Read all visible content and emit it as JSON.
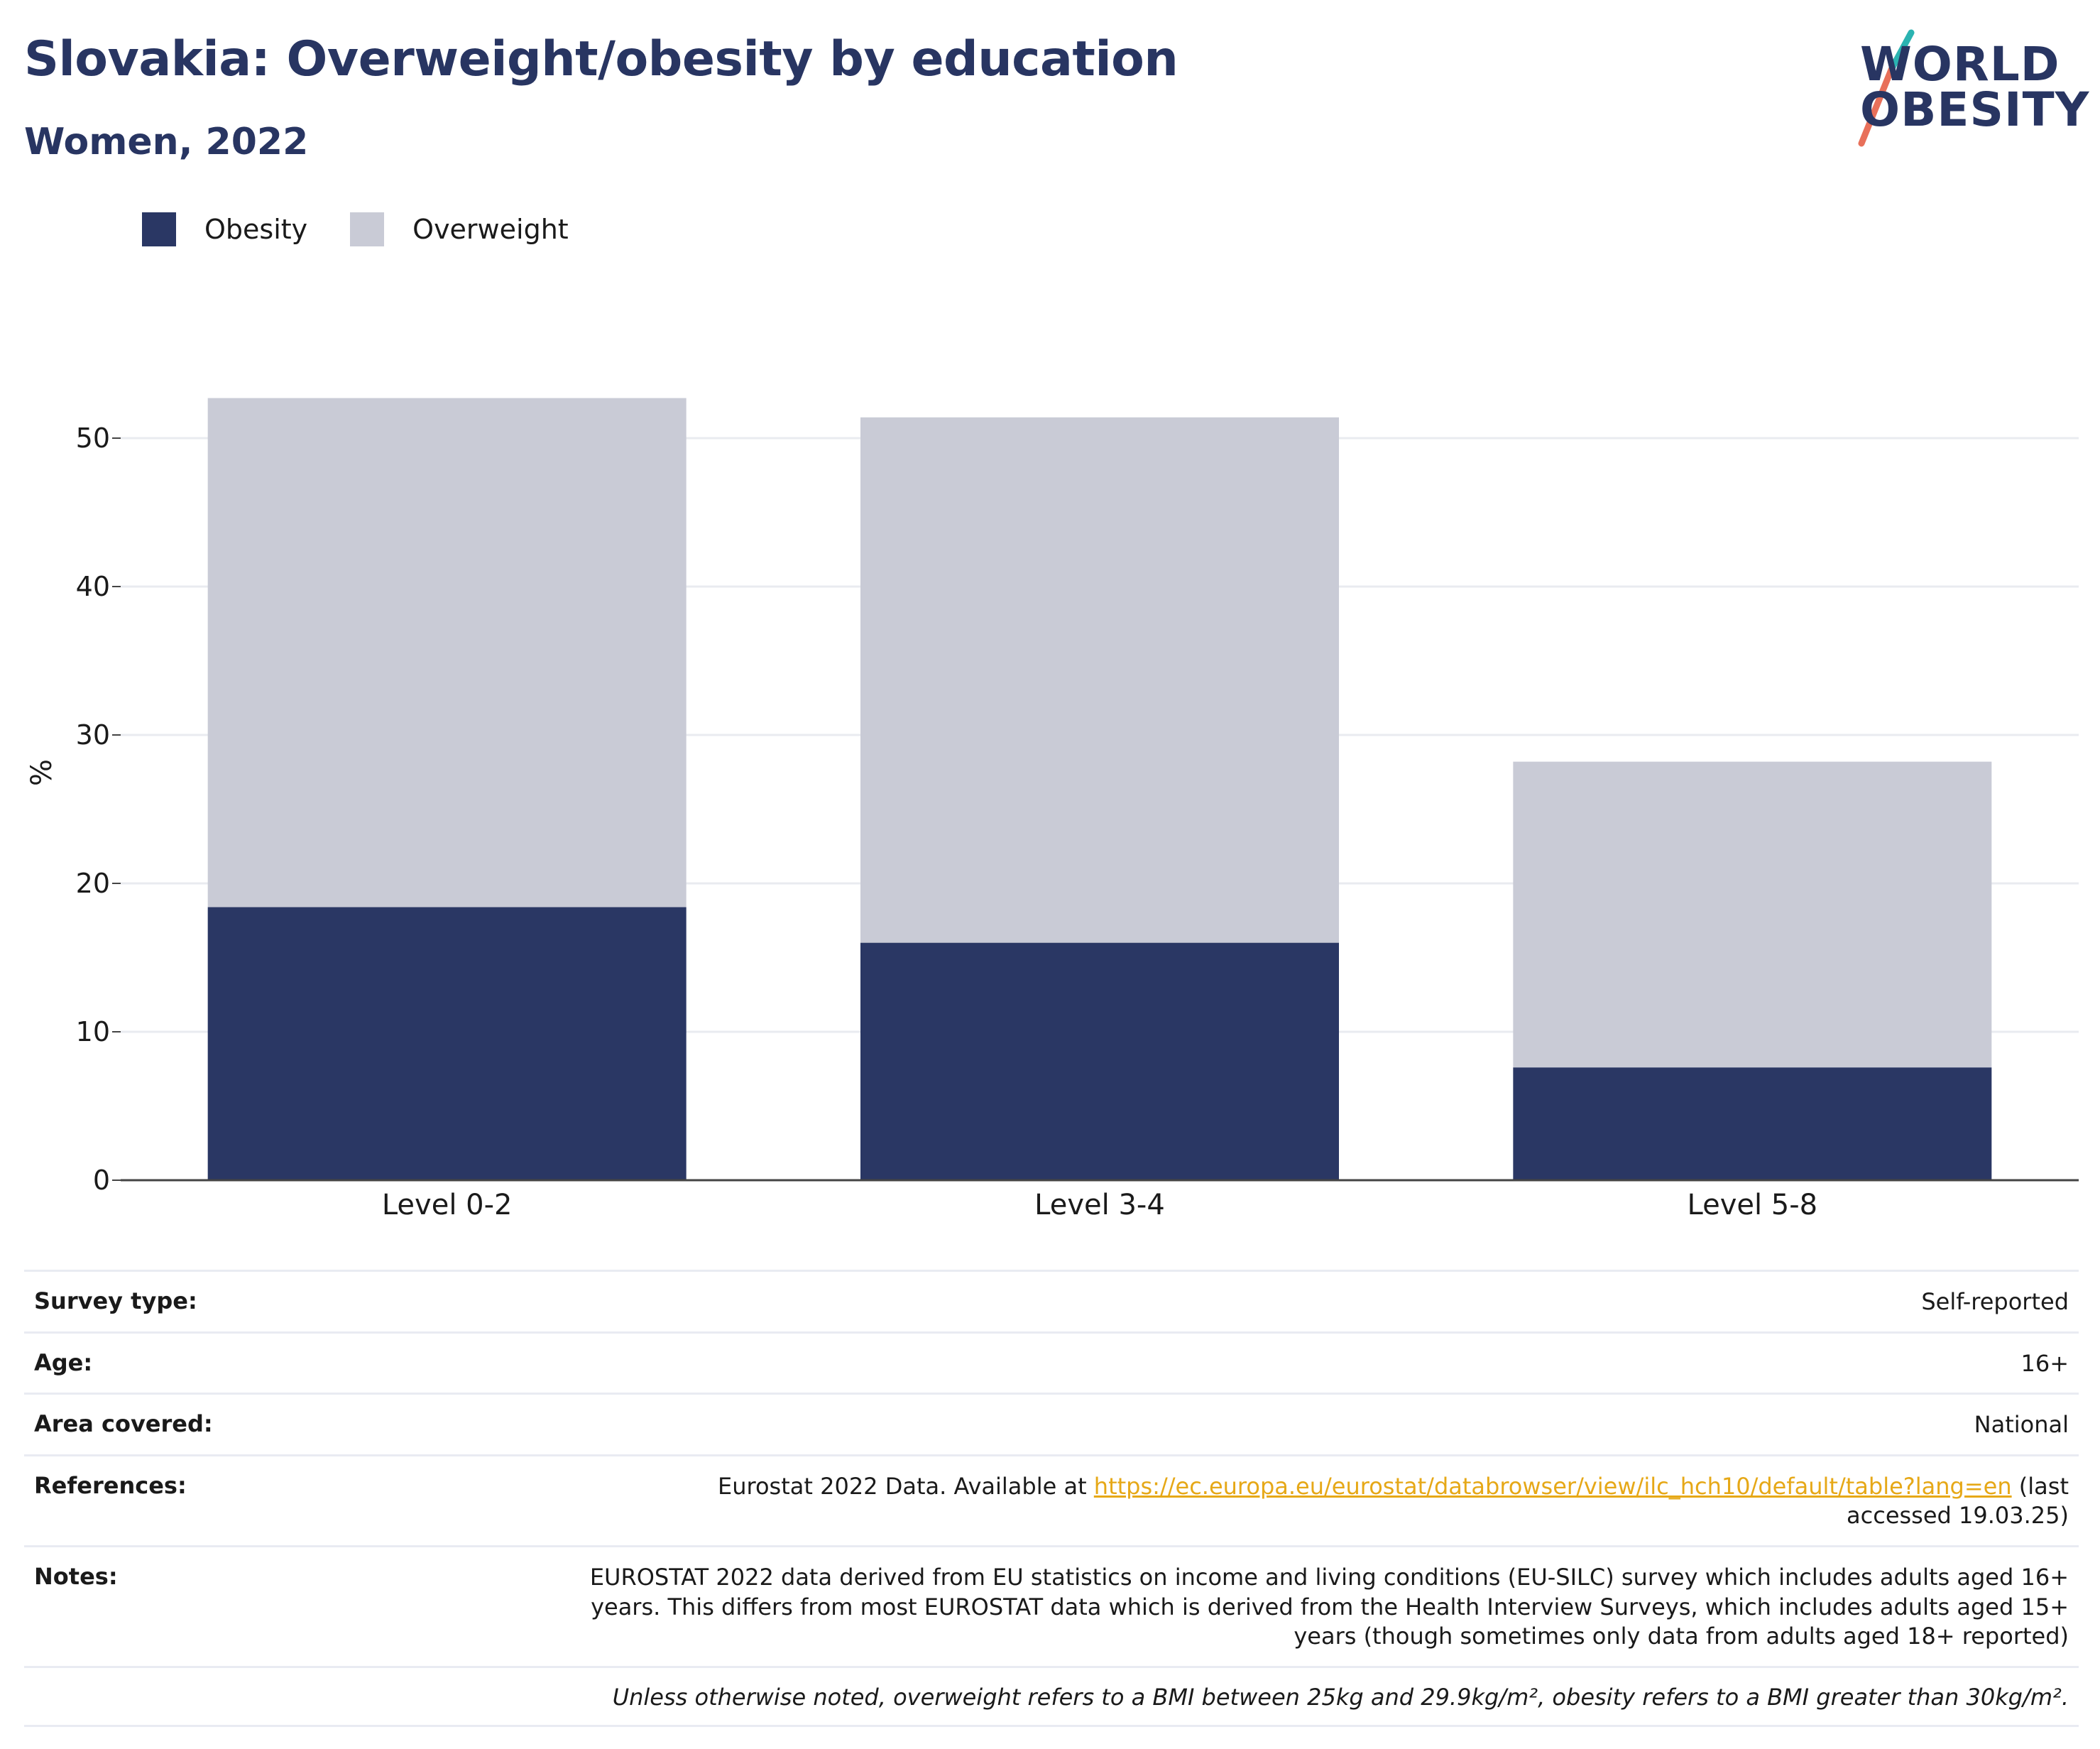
{
  "header": {
    "title": "Slovakia: Overweight/obesity by education",
    "subtitle": "Women, 2022"
  },
  "logo": {
    "line1": "WORLD",
    "line2": "OBESITY",
    "colors": {
      "text": "#283562",
      "teal": "#2bb3b1",
      "coral": "#e8705a"
    }
  },
  "colors": {
    "obesity": "#2a3764",
    "overweight": "#c9cbd6",
    "grid": "#e9ebf0",
    "axis": "#444444"
  },
  "chart_data": {
    "type": "bar",
    "stacked": true,
    "categories": [
      "Level 0-2",
      "Level 3-4",
      "Level 5-8"
    ],
    "series": [
      {
        "name": "Obesity",
        "values": [
          18.4,
          16.0,
          7.6
        ],
        "color": "#2a3764"
      },
      {
        "name": "Overweight",
        "values": [
          34.3,
          35.4,
          20.6
        ],
        "color": "#c9cbd6"
      }
    ],
    "totals": [
      52.7,
      51.4,
      28.2
    ],
    "ylabel": "%",
    "yticks": [
      0,
      10,
      20,
      30,
      40,
      50
    ],
    "ylim": [
      0,
      53
    ],
    "grid": true,
    "legend_position": "top-left"
  },
  "info": {
    "survey_type": {
      "key": "Survey type:",
      "value": "Self-reported"
    },
    "age": {
      "key": "Age:",
      "value": "16+"
    },
    "area": {
      "key": "Area covered:",
      "value": "National"
    },
    "references": {
      "key": "References:",
      "prefix": "Eurostat 2022 Data. Available at ",
      "link": "https://ec.europa.eu/eurostat/databrowser/view/ilc_hch10/default/table?lang=en",
      "suffix": " (last accessed 19.03.25)"
    },
    "notes": {
      "key": "Notes:",
      "value": "EUROSTAT 2022 data derived from EU statistics on income and living conditions (EU-SILC) survey which includes adults aged 16+ years. This differs from most EUROSTAT data which is derived from the Health Interview Surveys, which includes adults aged 15+ years (though sometimes only data from adults aged 18+ reported)"
    },
    "definition": "Unless otherwise noted, overweight refers to a BMI between 25kg and 29.9kg/m², obesity refers to a BMI greater than 30kg/m²."
  }
}
